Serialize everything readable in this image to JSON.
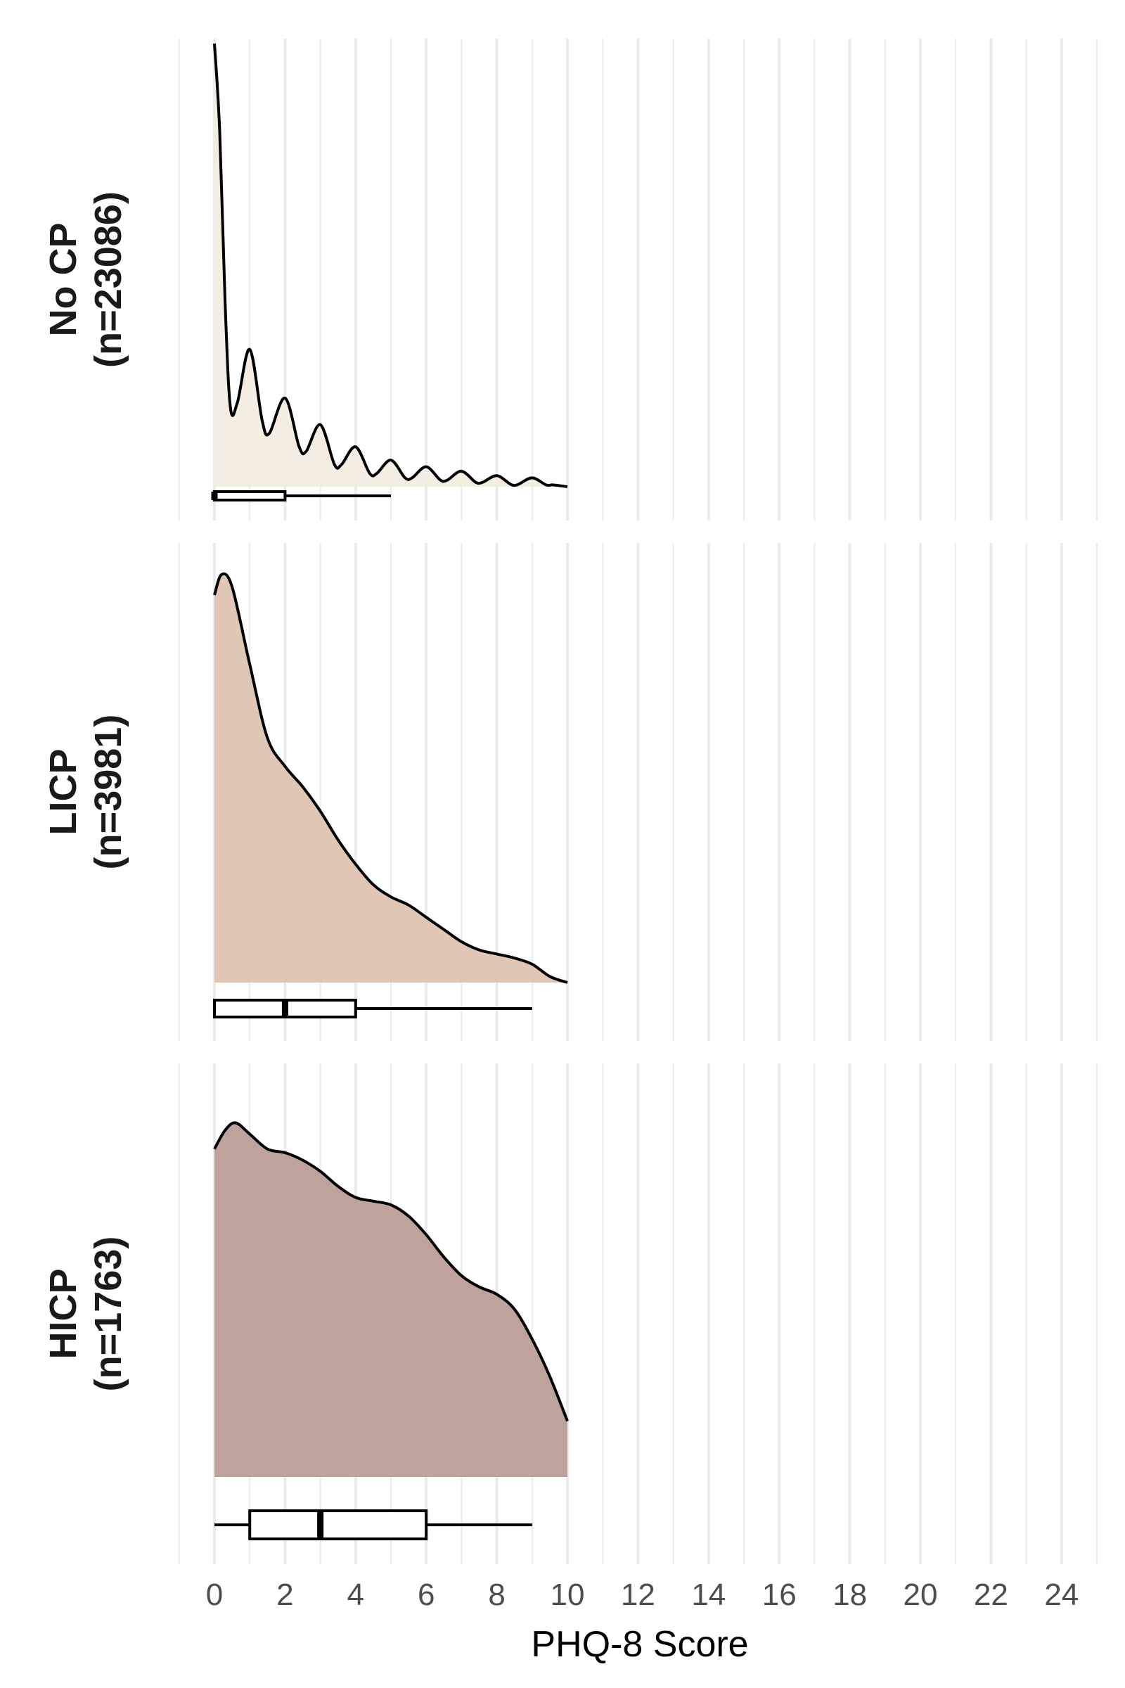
{
  "chart_data": {
    "type": "area",
    "xlabel": "PHQ-8 Score",
    "xlim": [
      -1,
      25
    ],
    "x_ticks": [
      0,
      2,
      4,
      6,
      8,
      10,
      12,
      14,
      16,
      18,
      20,
      22,
      24
    ],
    "grid": "vertical lines at every integer",
    "panels": [
      {
        "name": "No CP",
        "n_label": "(n=23086)",
        "fill": "#f3ebe0",
        "density": [
          [
            0,
            1.0
          ],
          [
            0.15,
            0.8
          ],
          [
            0.3,
            0.42
          ],
          [
            0.45,
            0.18
          ],
          [
            0.65,
            0.19
          ],
          [
            1.0,
            0.31
          ],
          [
            1.35,
            0.15
          ],
          [
            1.55,
            0.12
          ],
          [
            2.0,
            0.2
          ],
          [
            2.4,
            0.09
          ],
          [
            2.6,
            0.08
          ],
          [
            3.0,
            0.14
          ],
          [
            3.4,
            0.05
          ],
          [
            3.6,
            0.05
          ],
          [
            4.0,
            0.09
          ],
          [
            4.4,
            0.03
          ],
          [
            4.6,
            0.03
          ],
          [
            5.0,
            0.06
          ],
          [
            5.4,
            0.02
          ],
          [
            5.6,
            0.02
          ],
          [
            6.0,
            0.045
          ],
          [
            6.4,
            0.015
          ],
          [
            6.6,
            0.015
          ],
          [
            7.0,
            0.035
          ],
          [
            7.4,
            0.01
          ],
          [
            7.6,
            0.01
          ],
          [
            8.0,
            0.025
          ],
          [
            8.4,
            0.005
          ],
          [
            8.6,
            0.005
          ],
          [
            9.0,
            0.02
          ],
          [
            9.4,
            0.004
          ],
          [
            9.6,
            0.004
          ],
          [
            10.0,
            0.0
          ]
        ],
        "boxplot": {
          "whisker_low": 0,
          "q1": 0,
          "median": 0,
          "q3": 2,
          "whisker_high": 5
        }
      },
      {
        "name": "LICP",
        "n_label": "(n=3981)",
        "fill": "#dcc1af",
        "density": [
          [
            0,
            0.95
          ],
          [
            0.2,
            1.0
          ],
          [
            0.5,
            0.97
          ],
          [
            1.0,
            0.78
          ],
          [
            1.5,
            0.6
          ],
          [
            2.0,
            0.53
          ],
          [
            2.5,
            0.48
          ],
          [
            3.0,
            0.42
          ],
          [
            3.5,
            0.35
          ],
          [
            4.0,
            0.29
          ],
          [
            4.5,
            0.24
          ],
          [
            5.0,
            0.21
          ],
          [
            5.5,
            0.19
          ],
          [
            6.0,
            0.16
          ],
          [
            6.5,
            0.13
          ],
          [
            7.0,
            0.1
          ],
          [
            7.5,
            0.08
          ],
          [
            8.0,
            0.07
          ],
          [
            8.5,
            0.06
          ],
          [
            9.0,
            0.045
          ],
          [
            9.5,
            0.015
          ],
          [
            10.0,
            0.0
          ]
        ],
        "boxplot": {
          "whisker_low": 0,
          "q1": 0,
          "median": 2,
          "q3": 4,
          "whisker_high": 9
        }
      },
      {
        "name": "HICP",
        "n_label": "(n=1763)",
        "fill": "#b99b94",
        "density": [
          [
            0,
            0.88
          ],
          [
            0.3,
            0.93
          ],
          [
            0.6,
            0.95
          ],
          [
            1.0,
            0.92
          ],
          [
            1.5,
            0.88
          ],
          [
            2.0,
            0.87
          ],
          [
            2.5,
            0.85
          ],
          [
            3.0,
            0.82
          ],
          [
            3.5,
            0.78
          ],
          [
            4.0,
            0.75
          ],
          [
            4.5,
            0.74
          ],
          [
            5.0,
            0.73
          ],
          [
            5.5,
            0.7
          ],
          [
            6.0,
            0.65
          ],
          [
            6.5,
            0.59
          ],
          [
            7.0,
            0.54
          ],
          [
            7.5,
            0.51
          ],
          [
            8.0,
            0.49
          ],
          [
            8.5,
            0.45
          ],
          [
            9.0,
            0.37
          ],
          [
            9.5,
            0.27
          ],
          [
            10.0,
            0.15
          ]
        ],
        "boxplot": {
          "whisker_low": 0,
          "q1": 1,
          "median": 3,
          "q3": 6,
          "whisker_high": 9
        }
      }
    ]
  }
}
